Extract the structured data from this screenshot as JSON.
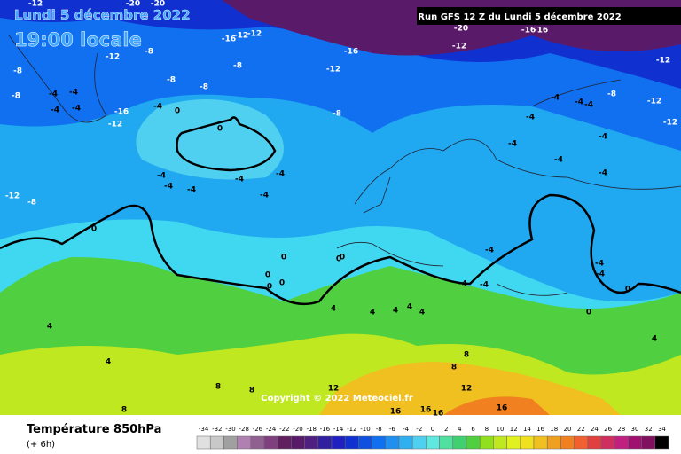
{
  "header": {
    "date": "Lundi 5 décembre 2022",
    "time": "19:00 locale",
    "run": "Run GFS 12 Z du Lundi 5 décembre 2022"
  },
  "copyright": "Copyright © 2022 Meteociel.fr",
  "legend": {
    "title": "Température 850hPa",
    "subtitle": "(+ 6h)",
    "ticks": [
      -34,
      -32,
      -30,
      -28,
      -26,
      -24,
      -22,
      -20,
      -18,
      -16,
      -14,
      -12,
      -10,
      -8,
      -6,
      -4,
      -2,
      0,
      2,
      4,
      6,
      8,
      10,
      12,
      14,
      16,
      18,
      20,
      22,
      24,
      26,
      28,
      30,
      32,
      34
    ],
    "colors": [
      "#e0e0e0",
      "#c8c8c8",
      "#a0a0a0",
      "#b080b0",
      "#906090",
      "#804080",
      "#602060",
      "#5a1a6a",
      "#502080",
      "#3020a0",
      "#2020c0",
      "#1030d0",
      "#1050e0",
      "#1070f0",
      "#2090f0",
      "#30b0f0",
      "#50d0f0",
      "#60e8e0",
      "#50e0a0",
      "#40d070",
      "#50d040",
      "#90e020",
      "#c0e820",
      "#e0f020",
      "#f0e020",
      "#f0c020",
      "#f0a020",
      "#f08020",
      "#f06030",
      "#e04040",
      "#d03060",
      "#c02080",
      "#a01070",
      "#801060",
      "#000000"
    ]
  },
  "contour_labels": [
    -12,
    -20,
    -20,
    -16,
    -12,
    -12,
    -12,
    -8,
    -8,
    -8,
    -4,
    -4,
    -4,
    -4,
    -16,
    -12,
    -4,
    0,
    0,
    -8,
    -8,
    -8,
    -12,
    -16,
    -20,
    -12,
    -16,
    -16,
    -12,
    -12,
    -12,
    -4,
    -4,
    -4,
    -8,
    -4,
    -4,
    -4,
    -4,
    -4,
    -8,
    -4,
    -4,
    -4,
    -4,
    -4,
    -4,
    -12,
    -8,
    0,
    0,
    0,
    0,
    0,
    0,
    0,
    -4,
    -4,
    -4,
    4,
    4,
    4,
    4,
    4,
    4,
    4,
    4,
    0,
    0,
    -4,
    -4,
    8,
    8,
    8,
    8,
    8,
    12,
    16,
    16,
    16,
    16,
    12
  ]
}
